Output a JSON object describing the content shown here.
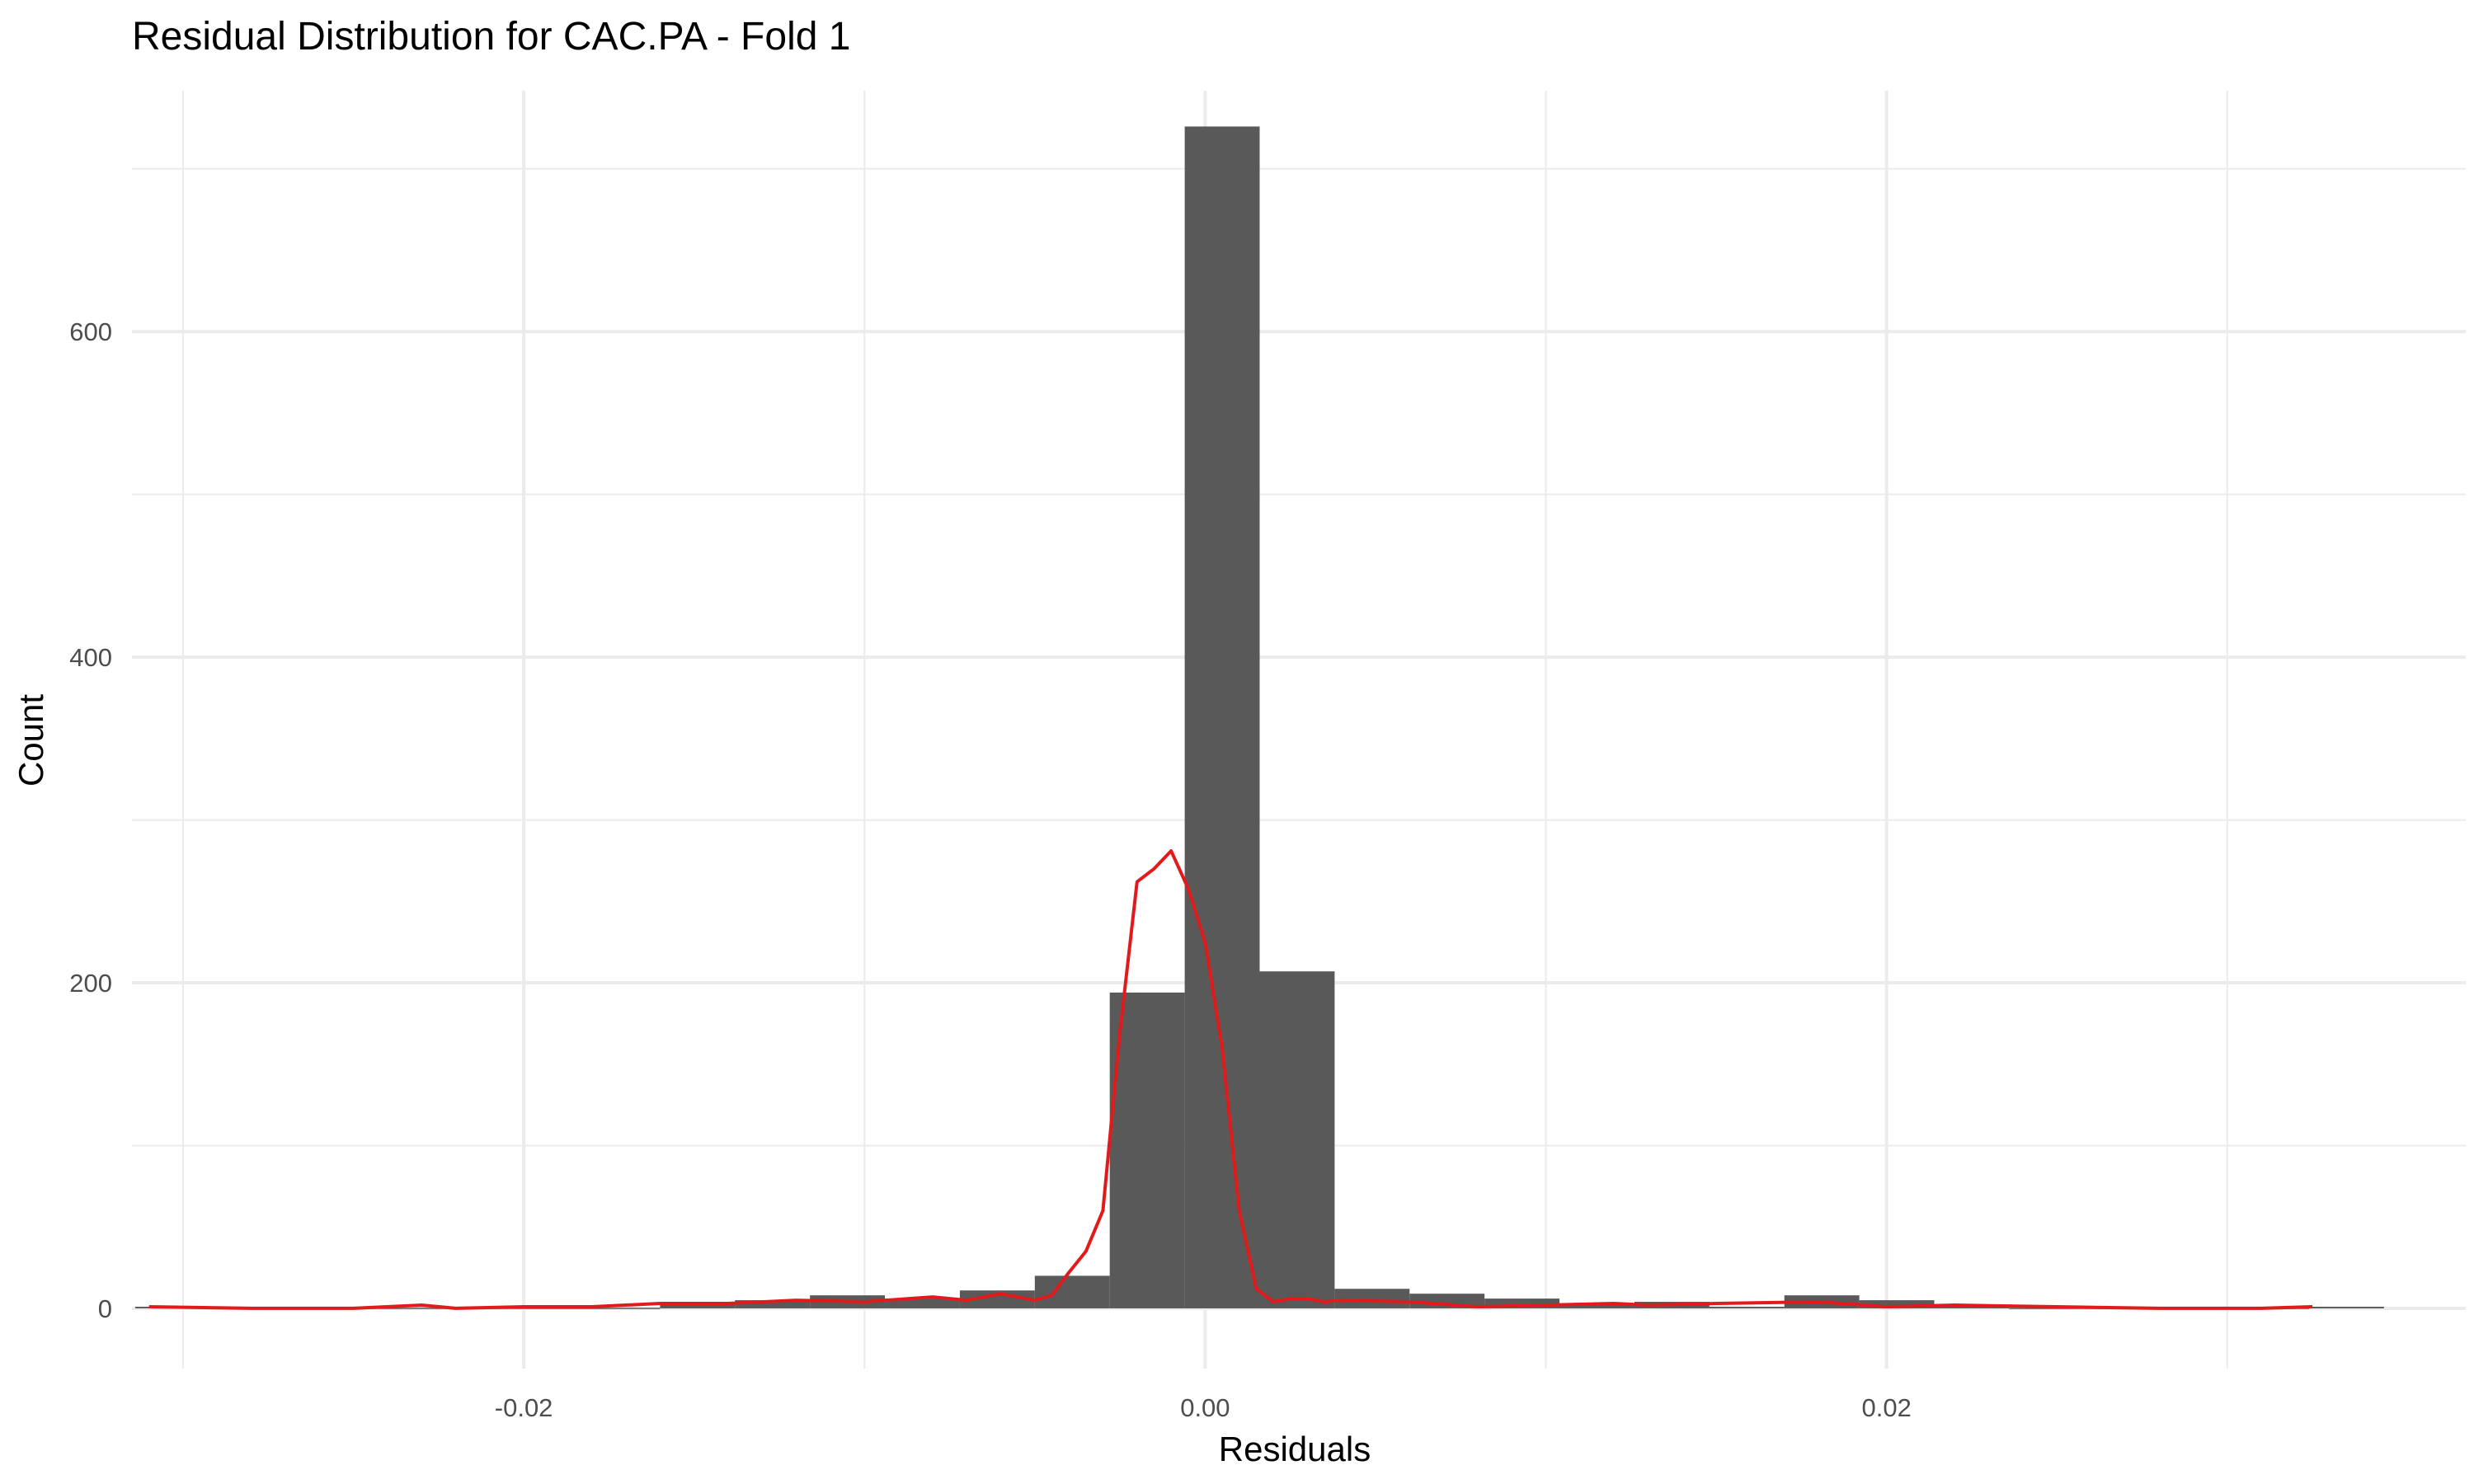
{
  "chart_data": {
    "type": "bar",
    "title": "Residual Distribution for CAC.PA - Fold 1",
    "xlabel": "Residuals",
    "ylabel": "Count",
    "xlim": [
      -0.0315,
      0.037
    ],
    "ylim": [
      -37,
      748
    ],
    "x_ticks": [
      {
        "value": -0.02,
        "label": "-0.02"
      },
      {
        "value": 0.0,
        "label": "0.00"
      },
      {
        "value": 0.02,
        "label": "0.02"
      }
    ],
    "x_minor": [
      -0.03,
      -0.01,
      0.01,
      0.03
    ],
    "y_ticks": [
      {
        "value": 0,
        "label": "0"
      },
      {
        "value": 200,
        "label": "200"
      },
      {
        "value": 400,
        "label": "400"
      },
      {
        "value": 600,
        "label": "600"
      }
    ],
    "y_minor": [
      100,
      300,
      500,
      700
    ],
    "grid": true,
    "bin_width": 0.0022,
    "bins": [
      {
        "x": -0.0314,
        "count": 1
      },
      {
        "x": -0.0292,
        "count": 0
      },
      {
        "x": -0.027,
        "count": 0
      },
      {
        "x": -0.0248,
        "count": 0
      },
      {
        "x": -0.0226,
        "count": 0
      },
      {
        "x": -0.0204,
        "count": 0
      },
      {
        "x": -0.0182,
        "count": 0
      },
      {
        "x": -0.016,
        "count": 3
      },
      {
        "x": -0.0138,
        "count": 5
      },
      {
        "x": -0.0116,
        "count": 8
      },
      {
        "x": -0.0094,
        "count": 6
      },
      {
        "x": -0.0072,
        "count": 11
      },
      {
        "x": -0.005,
        "count": 20
      },
      {
        "x": -0.0028,
        "count": 194
      },
      {
        "x": -0.0006,
        "count": 726
      },
      {
        "x": 0.0016,
        "count": 207
      },
      {
        "x": 0.0038,
        "count": 12
      },
      {
        "x": 0.006,
        "count": 9
      },
      {
        "x": 0.0082,
        "count": 6
      },
      {
        "x": 0.0104,
        "count": 2
      },
      {
        "x": 0.0126,
        "count": 4
      },
      {
        "x": 0.0148,
        "count": 1
      },
      {
        "x": 0.017,
        "count": 8
      },
      {
        "x": 0.0192,
        "count": 5
      },
      {
        "x": 0.0214,
        "count": 2
      },
      {
        "x": 0.0236,
        "count": 0
      },
      {
        "x": 0.0258,
        "count": 0
      },
      {
        "x": 0.028,
        "count": 0
      },
      {
        "x": 0.0302,
        "count": 0
      },
      {
        "x": 0.0324,
        "count": 1
      }
    ],
    "density_line": {
      "x": [
        -0.031,
        -0.028,
        -0.025,
        -0.023,
        -0.022,
        -0.02,
        -0.018,
        -0.016,
        -0.014,
        -0.012,
        -0.01,
        -0.008,
        -0.007,
        -0.006,
        -0.005,
        -0.0045,
        -0.004,
        -0.0035,
        -0.003,
        -0.0025,
        -0.002,
        -0.0015,
        -0.001,
        -0.0005,
        0.0,
        0.0005,
        0.001,
        0.0015,
        0.002,
        0.0025,
        0.003,
        0.0035,
        0.004,
        0.006,
        0.008,
        0.01,
        0.012,
        0.013,
        0.015,
        0.018,
        0.02,
        0.022,
        0.025,
        0.028,
        0.031,
        0.0325
      ],
      "y": [
        1,
        0,
        0,
        2,
        0,
        1,
        1,
        3,
        3,
        5,
        4,
        7,
        5,
        9,
        5,
        8,
        22,
        35,
        60,
        170,
        262,
        270,
        281,
        258,
        225,
        160,
        60,
        12,
        4,
        6,
        6,
        4,
        5,
        4,
        1,
        2,
        3,
        2,
        3,
        4,
        1,
        2,
        1,
        0,
        0,
        1
      ]
    },
    "colors": {
      "bar": "#595959",
      "density": "#e31a1c",
      "grid": "#ebebeb",
      "tick_text": "#4d4d4d"
    }
  }
}
